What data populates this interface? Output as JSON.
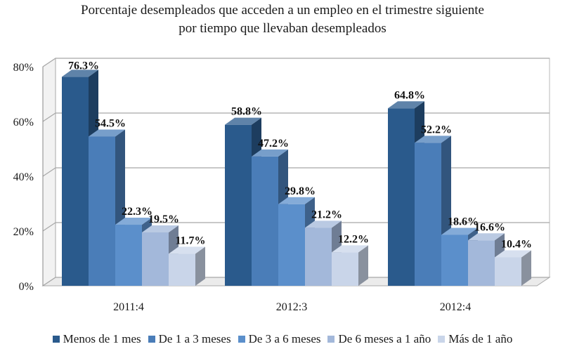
{
  "chart_data": {
    "type": "bar",
    "title": [
      "Porcentaje desempleados que acceden a un empleo en el trimestre siguiente",
      "por tiempo que llevaban desempleados"
    ],
    "categories": [
      "2011:4",
      "2012:3",
      "2012:4"
    ],
    "series": [
      {
        "name": "Menos de 1 mes",
        "values": [
          76.3,
          58.8,
          64.8
        ]
      },
      {
        "name": "De 1 a 3 meses",
        "values": [
          54.5,
          47.2,
          52.2
        ]
      },
      {
        "name": "De 3 a 6 meses",
        "values": [
          22.3,
          29.8,
          18.6
        ]
      },
      {
        "name": "De 6 meses a 1 año",
        "values": [
          19.5,
          21.2,
          16.6
        ]
      },
      {
        "name": "Más de 1 año",
        "values": [
          11.7,
          12.2,
          10.4
        ]
      }
    ],
    "data_labels": [
      [
        "76.3%",
        "58.8%",
        "64.8%"
      ],
      [
        "54.5%",
        "47.2%",
        "52.2%"
      ],
      [
        "22.3%",
        "29.8%",
        "18.6%"
      ],
      [
        "19.5%",
        "21.2%",
        "16.6%"
      ],
      [
        "11.7%",
        "12.2%",
        "10.4%"
      ]
    ],
    "ylim": [
      0,
      80
    ],
    "yticks": [
      0,
      20,
      40,
      60,
      80
    ],
    "ytick_labels": [
      "0%",
      "20%",
      "40%",
      "60%",
      "80%"
    ],
    "grid": true,
    "legend_position": "bottom",
    "colors": [
      "#2a5a8c",
      "#4a7db8",
      "#5b8fcb",
      "#a3b8da",
      "#c9d5e9"
    ]
  }
}
